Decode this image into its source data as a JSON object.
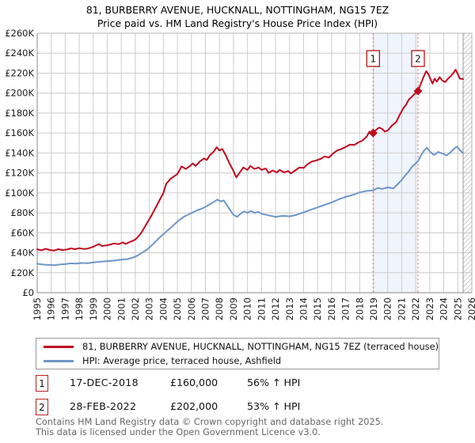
{
  "title": {
    "line1": "81, BURBERRY AVENUE, HUCKNALL, NOTTINGHAM, NG15 7EZ",
    "line2": "Price paid vs. HM Land Registry's House Price Index (HPI)"
  },
  "chart_data": {
    "type": "line",
    "x_axis": {
      "start": 1995,
      "end": 2026,
      "tick_labels": [
        "1995",
        "1996",
        "1997",
        "1998",
        "1999",
        "2000",
        "2001",
        "2002",
        "2003",
        "2004",
        "2005",
        "2006",
        "2007",
        "2008",
        "2009",
        "2010",
        "2011",
        "2012",
        "2013",
        "2014",
        "2015",
        "2016",
        "2017",
        "2018",
        "2019",
        "2020",
        "2021",
        "2022",
        "2023",
        "2024",
        "2025",
        "2026"
      ]
    },
    "y_axis": {
      "min": 0,
      "max": 260000,
      "step": 20000,
      "tick_labels": [
        "£0",
        "£20K",
        "£40K",
        "£60K",
        "£80K",
        "£100K",
        "£120K",
        "£140K",
        "£160K",
        "£180K",
        "£200K",
        "£220K",
        "£240K",
        "£260K"
      ]
    },
    "grid": true,
    "colors": {
      "property": "#bf0a1e",
      "hpi": "#6d96c8",
      "dashed_marker": "#e87a7a",
      "shaded_band": "#f0f4fb",
      "gridline": "#cccccc",
      "axis": "#888888",
      "hatch": "#c0c0c8"
    },
    "shaded_region": {
      "from_year": 2018.96,
      "to_year": 2022.16
    },
    "hatch_after_year": 2025.38,
    "series": [
      {
        "name": "81, BURBERRY AVENUE, HUCKNALL, NOTTINGHAM, NG15 7EZ (terraced house)",
        "color": "#bf0a1e",
        "points": [
          [
            1995.0,
            43500
          ],
          [
            1995.3,
            42500
          ],
          [
            1995.6,
            44000
          ],
          [
            1995.9,
            42800
          ],
          [
            1996.2,
            42200
          ],
          [
            1996.5,
            43600
          ],
          [
            1996.8,
            42800
          ],
          [
            1997.1,
            43200
          ],
          [
            1997.4,
            44400
          ],
          [
            1997.7,
            43600
          ],
          [
            1998.0,
            44600
          ],
          [
            1998.3,
            43800
          ],
          [
            1998.6,
            44200
          ],
          [
            1998.9,
            45500
          ],
          [
            1999.2,
            47500
          ],
          [
            1999.4,
            48800
          ],
          [
            1999.6,
            46800
          ],
          [
            1999.9,
            47300
          ],
          [
            2000.2,
            48300
          ],
          [
            2000.5,
            49400
          ],
          [
            2000.8,
            48600
          ],
          [
            2001.1,
            50300
          ],
          [
            2001.3,
            48800
          ],
          [
            2001.6,
            50800
          ],
          [
            2001.9,
            52500
          ],
          [
            2002.1,
            54500
          ],
          [
            2002.4,
            59500
          ],
          [
            2002.8,
            69000
          ],
          [
            2003.1,
            76000
          ],
          [
            2003.4,
            84000
          ],
          [
            2003.7,
            92000
          ],
          [
            2004.0,
            100000
          ],
          [
            2004.2,
            109000
          ],
          [
            2004.5,
            114000
          ],
          [
            2004.8,
            117000
          ],
          [
            2005.0,
            119000
          ],
          [
            2005.3,
            126500
          ],
          [
            2005.6,
            124000
          ],
          [
            2005.9,
            127000
          ],
          [
            2006.1,
            129500
          ],
          [
            2006.3,
            127000
          ],
          [
            2006.6,
            131500
          ],
          [
            2006.9,
            134500
          ],
          [
            2007.1,
            133000
          ],
          [
            2007.3,
            137500
          ],
          [
            2007.6,
            141500
          ],
          [
            2007.8,
            145800
          ],
          [
            2008.0,
            142500
          ],
          [
            2008.2,
            144000
          ],
          [
            2008.4,
            139000
          ],
          [
            2008.7,
            130000
          ],
          [
            2009.0,
            122000
          ],
          [
            2009.2,
            115500
          ],
          [
            2009.5,
            121500
          ],
          [
            2009.7,
            125500
          ],
          [
            2010.0,
            123000
          ],
          [
            2010.2,
            127000
          ],
          [
            2010.5,
            124000
          ],
          [
            2010.8,
            125500
          ],
          [
            2011.0,
            123000
          ],
          [
            2011.3,
            124500
          ],
          [
            2011.5,
            120000
          ],
          [
            2011.8,
            122500
          ],
          [
            2012.1,
            120500
          ],
          [
            2012.3,
            123000
          ],
          [
            2012.6,
            120500
          ],
          [
            2012.9,
            122000
          ],
          [
            2013.1,
            119500
          ],
          [
            2013.4,
            122500
          ],
          [
            2013.7,
            125500
          ],
          [
            2014.0,
            125000
          ],
          [
            2014.3,
            129000
          ],
          [
            2014.6,
            131500
          ],
          [
            2014.9,
            132500
          ],
          [
            2015.2,
            134000
          ],
          [
            2015.5,
            136500
          ],
          [
            2015.8,
            135500
          ],
          [
            2016.1,
            139500
          ],
          [
            2016.4,
            142500
          ],
          [
            2016.7,
            144000
          ],
          [
            2017.0,
            146000
          ],
          [
            2017.3,
            148500
          ],
          [
            2017.6,
            148000
          ],
          [
            2017.9,
            150500
          ],
          [
            2018.2,
            152500
          ],
          [
            2018.5,
            156500
          ],
          [
            2018.7,
            161500
          ],
          [
            2018.85,
            159500
          ],
          [
            2018.96,
            160000
          ],
          [
            2019.2,
            163500
          ],
          [
            2019.4,
            165500
          ],
          [
            2019.6,
            164000
          ],
          [
            2019.8,
            161500
          ],
          [
            2020.0,
            162500
          ],
          [
            2020.3,
            167500
          ],
          [
            2020.6,
            171000
          ],
          [
            2020.85,
            178000
          ],
          [
            2021.1,
            184500
          ],
          [
            2021.3,
            188000
          ],
          [
            2021.5,
            193500
          ],
          [
            2021.7,
            196000
          ],
          [
            2021.9,
            199000
          ],
          [
            2022.16,
            202000
          ],
          [
            2022.35,
            209000
          ],
          [
            2022.55,
            216000
          ],
          [
            2022.75,
            222000
          ],
          [
            2022.9,
            219000
          ],
          [
            2023.05,
            214000
          ],
          [
            2023.2,
            209500
          ],
          [
            2023.35,
            214500
          ],
          [
            2023.5,
            211500
          ],
          [
            2023.7,
            216000
          ],
          [
            2023.9,
            212500
          ],
          [
            2024.1,
            211000
          ],
          [
            2024.3,
            214500
          ],
          [
            2024.5,
            217000
          ],
          [
            2024.7,
            220500
          ],
          [
            2024.85,
            223500
          ],
          [
            2025.0,
            219000
          ],
          [
            2025.15,
            214500
          ],
          [
            2025.38,
            214000
          ]
        ]
      },
      {
        "name": "HPI: Average price, terraced house, Ashfield",
        "color": "#6d96c8",
        "points": [
          [
            1995.0,
            29000
          ],
          [
            1995.4,
            28200
          ],
          [
            1995.8,
            27800
          ],
          [
            1996.2,
            27600
          ],
          [
            1996.6,
            28200
          ],
          [
            1997.0,
            28600
          ],
          [
            1997.4,
            29400
          ],
          [
            1997.8,
            29200
          ],
          [
            1998.2,
            29800
          ],
          [
            1998.6,
            29600
          ],
          [
            1999.0,
            30400
          ],
          [
            1999.4,
            30800
          ],
          [
            1999.8,
            31400
          ],
          [
            2000.2,
            31800
          ],
          [
            2000.6,
            32400
          ],
          [
            2001.0,
            33200
          ],
          [
            2001.4,
            33600
          ],
          [
            2001.8,
            35000
          ],
          [
            2002.1,
            36800
          ],
          [
            2002.4,
            39400
          ],
          [
            2002.8,
            42800
          ],
          [
            2003.1,
            46500
          ],
          [
            2003.4,
            50500
          ],
          [
            2003.7,
            55000
          ],
          [
            2004.0,
            58500
          ],
          [
            2004.3,
            62500
          ],
          [
            2004.6,
            66000
          ],
          [
            2004.9,
            70000
          ],
          [
            2005.2,
            73500
          ],
          [
            2005.5,
            76500
          ],
          [
            2005.8,
            78500
          ],
          [
            2006.1,
            80500
          ],
          [
            2006.4,
            82500
          ],
          [
            2006.7,
            84000
          ],
          [
            2007.0,
            86000
          ],
          [
            2007.3,
            88500
          ],
          [
            2007.6,
            91000
          ],
          [
            2007.85,
            93200
          ],
          [
            2008.1,
            91500
          ],
          [
            2008.3,
            92500
          ],
          [
            2008.5,
            88500
          ],
          [
            2008.75,
            83000
          ],
          [
            2009.0,
            78000
          ],
          [
            2009.25,
            76000
          ],
          [
            2009.5,
            79000
          ],
          [
            2009.75,
            81500
          ],
          [
            2010.0,
            80000
          ],
          [
            2010.25,
            82000
          ],
          [
            2010.5,
            80000
          ],
          [
            2010.75,
            81000
          ],
          [
            2011.0,
            79000
          ],
          [
            2011.5,
            77500
          ],
          [
            2012.0,
            76000
          ],
          [
            2012.5,
            77000
          ],
          [
            2013.0,
            76500
          ],
          [
            2013.5,
            78000
          ],
          [
            2014.0,
            80500
          ],
          [
            2014.5,
            83000
          ],
          [
            2015.0,
            85500
          ],
          [
            2015.5,
            88000
          ],
          [
            2016.0,
            90500
          ],
          [
            2016.5,
            93500
          ],
          [
            2017.0,
            96000
          ],
          [
            2017.5,
            98000
          ],
          [
            2018.0,
            100500
          ],
          [
            2018.5,
            102000
          ],
          [
            2018.96,
            102500
          ],
          [
            2019.3,
            105000
          ],
          [
            2019.6,
            104000
          ],
          [
            2020.0,
            105500
          ],
          [
            2020.4,
            104500
          ],
          [
            2020.7,
            108500
          ],
          [
            2021.0,
            113000
          ],
          [
            2021.25,
            117500
          ],
          [
            2021.5,
            121500
          ],
          [
            2021.75,
            126500
          ],
          [
            2022.0,
            129500
          ],
          [
            2022.16,
            132000
          ],
          [
            2022.4,
            138000
          ],
          [
            2022.6,
            142500
          ],
          [
            2022.8,
            145300
          ],
          [
            2023.0,
            141500
          ],
          [
            2023.3,
            138000
          ],
          [
            2023.6,
            141000
          ],
          [
            2023.9,
            139500
          ],
          [
            2024.2,
            137500
          ],
          [
            2024.5,
            141000
          ],
          [
            2024.75,
            144500
          ],
          [
            2024.95,
            146300
          ],
          [
            2025.1,
            143500
          ],
          [
            2025.38,
            140000
          ]
        ]
      }
    ],
    "sale_markers": [
      {
        "label": "1",
        "year": 2018.96,
        "price": 160000
      },
      {
        "label": "2",
        "year": 2022.16,
        "price": 202000
      }
    ]
  },
  "legend": {
    "items": [
      {
        "label": "81, BURBERRY AVENUE, HUCKNALL, NOTTINGHAM, NG15 7EZ (terraced house)",
        "color": "#bf0a1e"
      },
      {
        "label": "HPI: Average price, terraced house, Ashfield",
        "color": "#6d96c8"
      }
    ]
  },
  "annotations": [
    {
      "num": "1",
      "date": "17-DEC-2018",
      "price": "£160,000",
      "hpi": "56% ↑ HPI"
    },
    {
      "num": "2",
      "date": "28-FEB-2022",
      "price": "£202,000",
      "hpi": "53% ↑ HPI"
    }
  ],
  "footer": {
    "line1": "Contains HM Land Registry data © Crown copyright and database right 2025.",
    "line2": "This data is licensed under the Open Government Licence v3.0."
  }
}
